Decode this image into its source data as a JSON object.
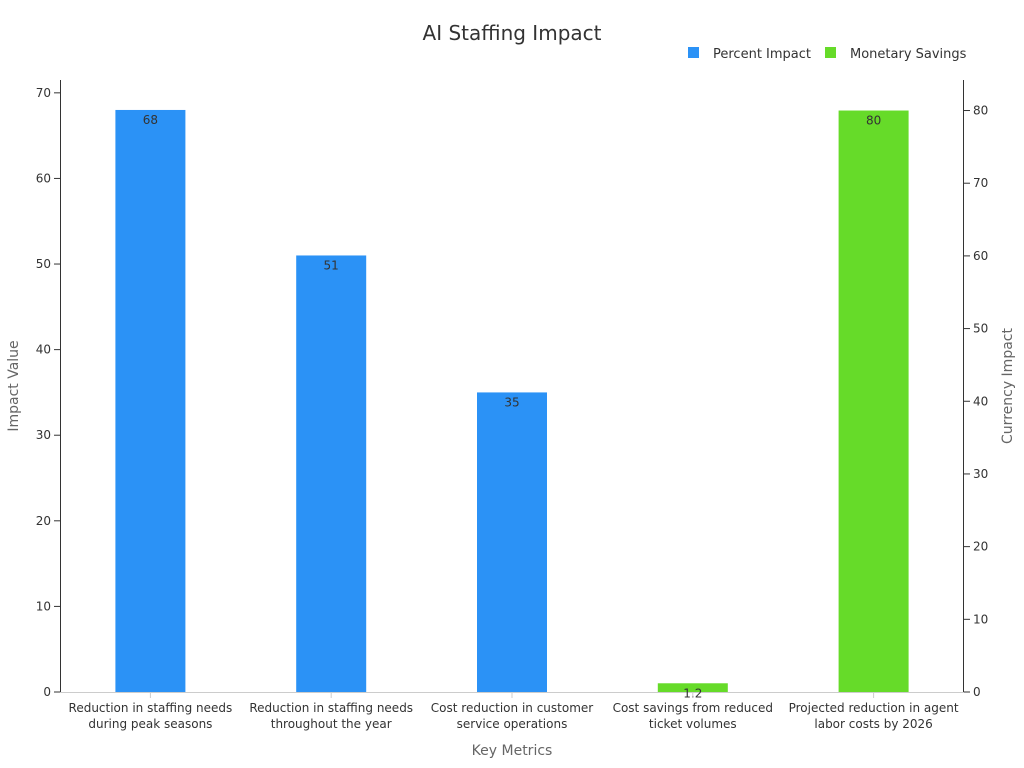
{
  "chart_data": {
    "type": "bar",
    "title": "AI Staffing Impact",
    "xlabel": "Key Metrics",
    "ylabel_left": "Impact Value",
    "ylabel_right": "Currency Impact",
    "categories": [
      [
        "Reduction in staffing needs",
        "during peak seasons"
      ],
      [
        "Reduction in staffing needs",
        "throughout the year"
      ],
      [
        "Cost reduction in customer",
        "service operations"
      ],
      [
        "Cost savings from reduced",
        "ticket volumes"
      ],
      [
        "Projected reduction in agent",
        "labor costs by 2026"
      ]
    ],
    "series": [
      {
        "name": "Percent Impact",
        "axis": "left",
        "color": "#2b92f6",
        "values": [
          68,
          51,
          35,
          null,
          null
        ]
      },
      {
        "name": "Monetary Savings",
        "axis": "right",
        "color": "#66db29",
        "values": [
          null,
          null,
          null,
          1.2,
          80
        ]
      }
    ],
    "y_left": {
      "min": 0,
      "max": 71.5,
      "ticks": [
        0,
        10,
        20,
        30,
        40,
        50,
        60,
        70
      ]
    },
    "y_right": {
      "min": 0,
      "max": 84.2,
      "ticks": [
        0,
        10,
        20,
        30,
        40,
        50,
        60,
        70,
        80
      ]
    },
    "legend_position": "top-right",
    "grid": false
  }
}
